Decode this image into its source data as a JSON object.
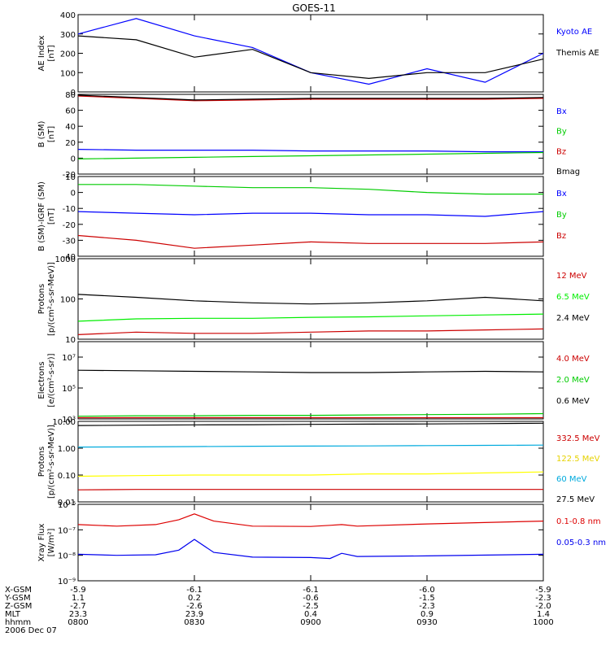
{
  "title": "GOES-11",
  "footer": {
    "rows": [
      {
        "label": "X-GSM",
        "values": [
          "-5.9",
          "-6.1",
          "-6.1",
          "-6.0",
          "-5.9"
        ]
      },
      {
        "label": "Y-GSM",
        "values": [
          "1.1",
          "0.2",
          "-0.6",
          "-1.5",
          "-2.3"
        ]
      },
      {
        "label": "Z-GSM",
        "values": [
          "-2.7",
          "-2.6",
          "-2.5",
          "-2.3",
          "-2.0"
        ]
      },
      {
        "label": "MLT",
        "values": [
          "23.3",
          "23.9",
          "0.4",
          "0.9",
          "1.4"
        ]
      },
      {
        "label": "hhmm",
        "values": [
          "0800",
          "0830",
          "0900",
          "0930",
          "1000"
        ]
      }
    ],
    "date": "2006 Dec 07"
  },
  "chart_data": [
    {
      "type": "line",
      "ylabel": [
        "AE Index",
        "[nT]"
      ],
      "ylim": [
        0,
        400
      ],
      "yscale": "linear",
      "yticks": [
        0,
        100,
        200,
        300,
        400
      ],
      "ytick_labels": [
        "0",
        "100",
        "200",
        "300",
        "400"
      ],
      "x": [
        "0800",
        "0815",
        "0830",
        "0845",
        "0900",
        "0915",
        "0930",
        "0945",
        "1000"
      ],
      "series": [
        {
          "name": "Kyoto AE",
          "color": "#0000ff",
          "values": [
            300,
            380,
            290,
            230,
            100,
            40,
            120,
            50,
            200
          ]
        },
        {
          "name": "Themis AE",
          "color": "#000000",
          "values": [
            290,
            270,
            180,
            220,
            100,
            70,
            100,
            100,
            170
          ]
        }
      ]
    },
    {
      "type": "line",
      "ylabel": [
        "B (SM)",
        "[nT]"
      ],
      "ylim": [
        -20,
        80
      ],
      "yscale": "linear",
      "yticks": [
        -20,
        0,
        20,
        40,
        60,
        80
      ],
      "ytick_labels": [
        "-20",
        "0",
        "20",
        "40",
        "60",
        "80"
      ],
      "x": [
        "0800",
        "0815",
        "0830",
        "0845",
        "0900",
        "0915",
        "0930",
        "0945",
        "1000"
      ],
      "series": [
        {
          "name": "Bx",
          "color": "#0000ff",
          "values": [
            11,
            10,
            10,
            10,
            9,
            9,
            9,
            8,
            8
          ]
        },
        {
          "name": "By",
          "color": "#00cc00",
          "values": [
            -1,
            0,
            1,
            2,
            3,
            4,
            5,
            6,
            7
          ]
        },
        {
          "name": "Bz",
          "color": "#cc0000",
          "values": [
            78,
            75,
            72,
            73,
            74,
            74,
            74,
            74,
            75
          ]
        },
        {
          "name": "Bmag",
          "color": "#000000",
          "values": [
            79,
            76,
            73,
            74,
            75,
            75,
            75,
            75,
            76
          ]
        }
      ]
    },
    {
      "type": "line",
      "ylabel": [
        "B (SM)-IGRF (SM)",
        "[nT]"
      ],
      "ylim": [
        -40,
        10
      ],
      "yscale": "linear",
      "yticks": [
        -40,
        -30,
        -20,
        -10,
        0,
        10
      ],
      "ytick_labels": [
        "-40",
        "-30",
        "-20",
        "-10",
        "0",
        "10"
      ],
      "x": [
        "0800",
        "0815",
        "0830",
        "0845",
        "0900",
        "0915",
        "0930",
        "0945",
        "1000"
      ],
      "series": [
        {
          "name": "Bx",
          "color": "#0000ff",
          "values": [
            -12,
            -13,
            -14,
            -13,
            -13,
            -14,
            -14,
            -15,
            -12
          ]
        },
        {
          "name": "By",
          "color": "#00cc00",
          "values": [
            5,
            5,
            4,
            3,
            3,
            2,
            0,
            -1,
            -1
          ]
        },
        {
          "name": "Bz",
          "color": "#cc0000",
          "values": [
            -27,
            -30,
            -35,
            -33,
            -31,
            -32,
            -32,
            -32,
            -31
          ]
        }
      ]
    },
    {
      "type": "line",
      "ylabel": [
        "Protons",
        "[p/(cm²-s-sr-MeV)]"
      ],
      "ylim": [
        10,
        1000
      ],
      "yscale": "log",
      "yticks": [
        10,
        100,
        1000
      ],
      "ytick_labels": [
        "10",
        "100",
        "1000"
      ],
      "x": [
        "0800",
        "0815",
        "0830",
        "0845",
        "0900",
        "0915",
        "0930",
        "0945",
        "1000"
      ],
      "series": [
        {
          "name": "12 MeV",
          "color": "#cc0000",
          "values": [
            13,
            15,
            14,
            14,
            15,
            16,
            16,
            17,
            18
          ]
        },
        {
          "name": "6.5 MeV",
          "color": "#00ee00",
          "values": [
            28,
            32,
            33,
            33,
            35,
            36,
            38,
            40,
            42
          ]
        },
        {
          "name": "2.4 MeV",
          "color": "#000000",
          "values": [
            130,
            110,
            90,
            80,
            75,
            80,
            90,
            110,
            90
          ]
        }
      ]
    },
    {
      "type": "line",
      "ylabel": [
        "Electrons",
        "[e/(cm²-s-sr)]"
      ],
      "ylim": [
        1000,
        100000000
      ],
      "yscale": "log",
      "yticks": [
        1000,
        100000,
        10000000
      ],
      "ytick_labels": [
        "10³",
        "10⁵",
        "10⁷"
      ],
      "x": [
        "0800",
        "0815",
        "0830",
        "0845",
        "0900",
        "0915",
        "0930",
        "0945",
        "1000"
      ],
      "series": [
        {
          "name": "4.0 MeV",
          "color": "#cc0000",
          "values": [
            1200,
            1200,
            1200,
            1200,
            1200,
            1200,
            1200,
            1200,
            1200
          ]
        },
        {
          "name": "2.0 MeV",
          "color": "#00cc00",
          "values": [
            1500,
            1600,
            1600,
            1700,
            1700,
            1800,
            1900,
            2000,
            2200
          ]
        },
        {
          "name": "0.6 MeV",
          "color": "#000000",
          "values": [
            1400000,
            1300000,
            1200000,
            1100000,
            1000000,
            1000000,
            1100000,
            1200000,
            1100000
          ]
        }
      ]
    },
    {
      "type": "line",
      "ylabel": [
        "Protons",
        "[p/(cm²-s-sr-MeV)]"
      ],
      "ylim": [
        0.01,
        10
      ],
      "yscale": "log",
      "yticks": [
        0.01,
        0.1,
        1,
        10
      ],
      "ytick_labels": [
        "0.01",
        "0.10",
        "1.00",
        "10.00"
      ],
      "x": [
        "0800",
        "0815",
        "0830",
        "0845",
        "0900",
        "0915",
        "0930",
        "0945",
        "1000"
      ],
      "series": [
        {
          "name": "332.5 MeV",
          "color": "#cc0000",
          "values": [
            0.028,
            0.029,
            0.029,
            0.029,
            0.029,
            0.029,
            0.029,
            0.029,
            0.029
          ]
        },
        {
          "name": "122.5 MeV",
          "color": "#ffff00",
          "values": [
            0.09,
            0.095,
            0.1,
            0.1,
            0.1,
            0.11,
            0.11,
            0.12,
            0.13
          ]
        },
        {
          "name": "60 MeV",
          "color": "#00aadd",
          "values": [
            1.1,
            1.12,
            1.15,
            1.18,
            1.2,
            1.22,
            1.25,
            1.28,
            1.3
          ]
        },
        {
          "name": "27.5 MeV",
          "color": "#000000",
          "values": [
            7.0,
            7.2,
            7.4,
            7.5,
            7.7,
            7.9,
            8.0,
            8.2,
            8.5
          ]
        }
      ]
    },
    {
      "type": "line",
      "ylabel": [
        "Xray Flux",
        "[W/m²]"
      ],
      "ylim": [
        1e-09,
        1e-06
      ],
      "yscale": "log",
      "yticks": [
        1e-09,
        1e-08,
        1e-07,
        1e-06
      ],
      "ytick_labels": [
        "10⁻⁹",
        "10⁻⁸",
        "10⁻⁷",
        "10⁻⁶"
      ],
      "x": [
        "0800",
        "0810",
        "0820",
        "0826",
        "0830",
        "0835",
        "0845",
        "0900",
        "0905",
        "0908",
        "0912",
        "0930",
        "1000"
      ],
      "series": [
        {
          "name": "0.1-0.8 nm",
          "color": "#dd0000",
          "values": [
            1.6e-07,
            1.4e-07,
            1.6e-07,
            2.5e-07,
            4.2e-07,
            2.2e-07,
            1.4e-07,
            1.35e-07,
            1.5e-07,
            1.6e-07,
            1.4e-07,
            1.7e-07,
            2.2e-07
          ]
        },
        {
          "name": "0.05-0.3 nm",
          "color": "#0000ee",
          "values": [
            1.1e-08,
            1e-08,
            1.05e-08,
            1.6e-08,
            4.2e-08,
            1.3e-08,
            8.5e-09,
            8.2e-09,
            7.5e-09,
            1.2e-08,
            9e-09,
            9.5e-09,
            1.1e-08
          ]
        }
      ]
    }
  ]
}
